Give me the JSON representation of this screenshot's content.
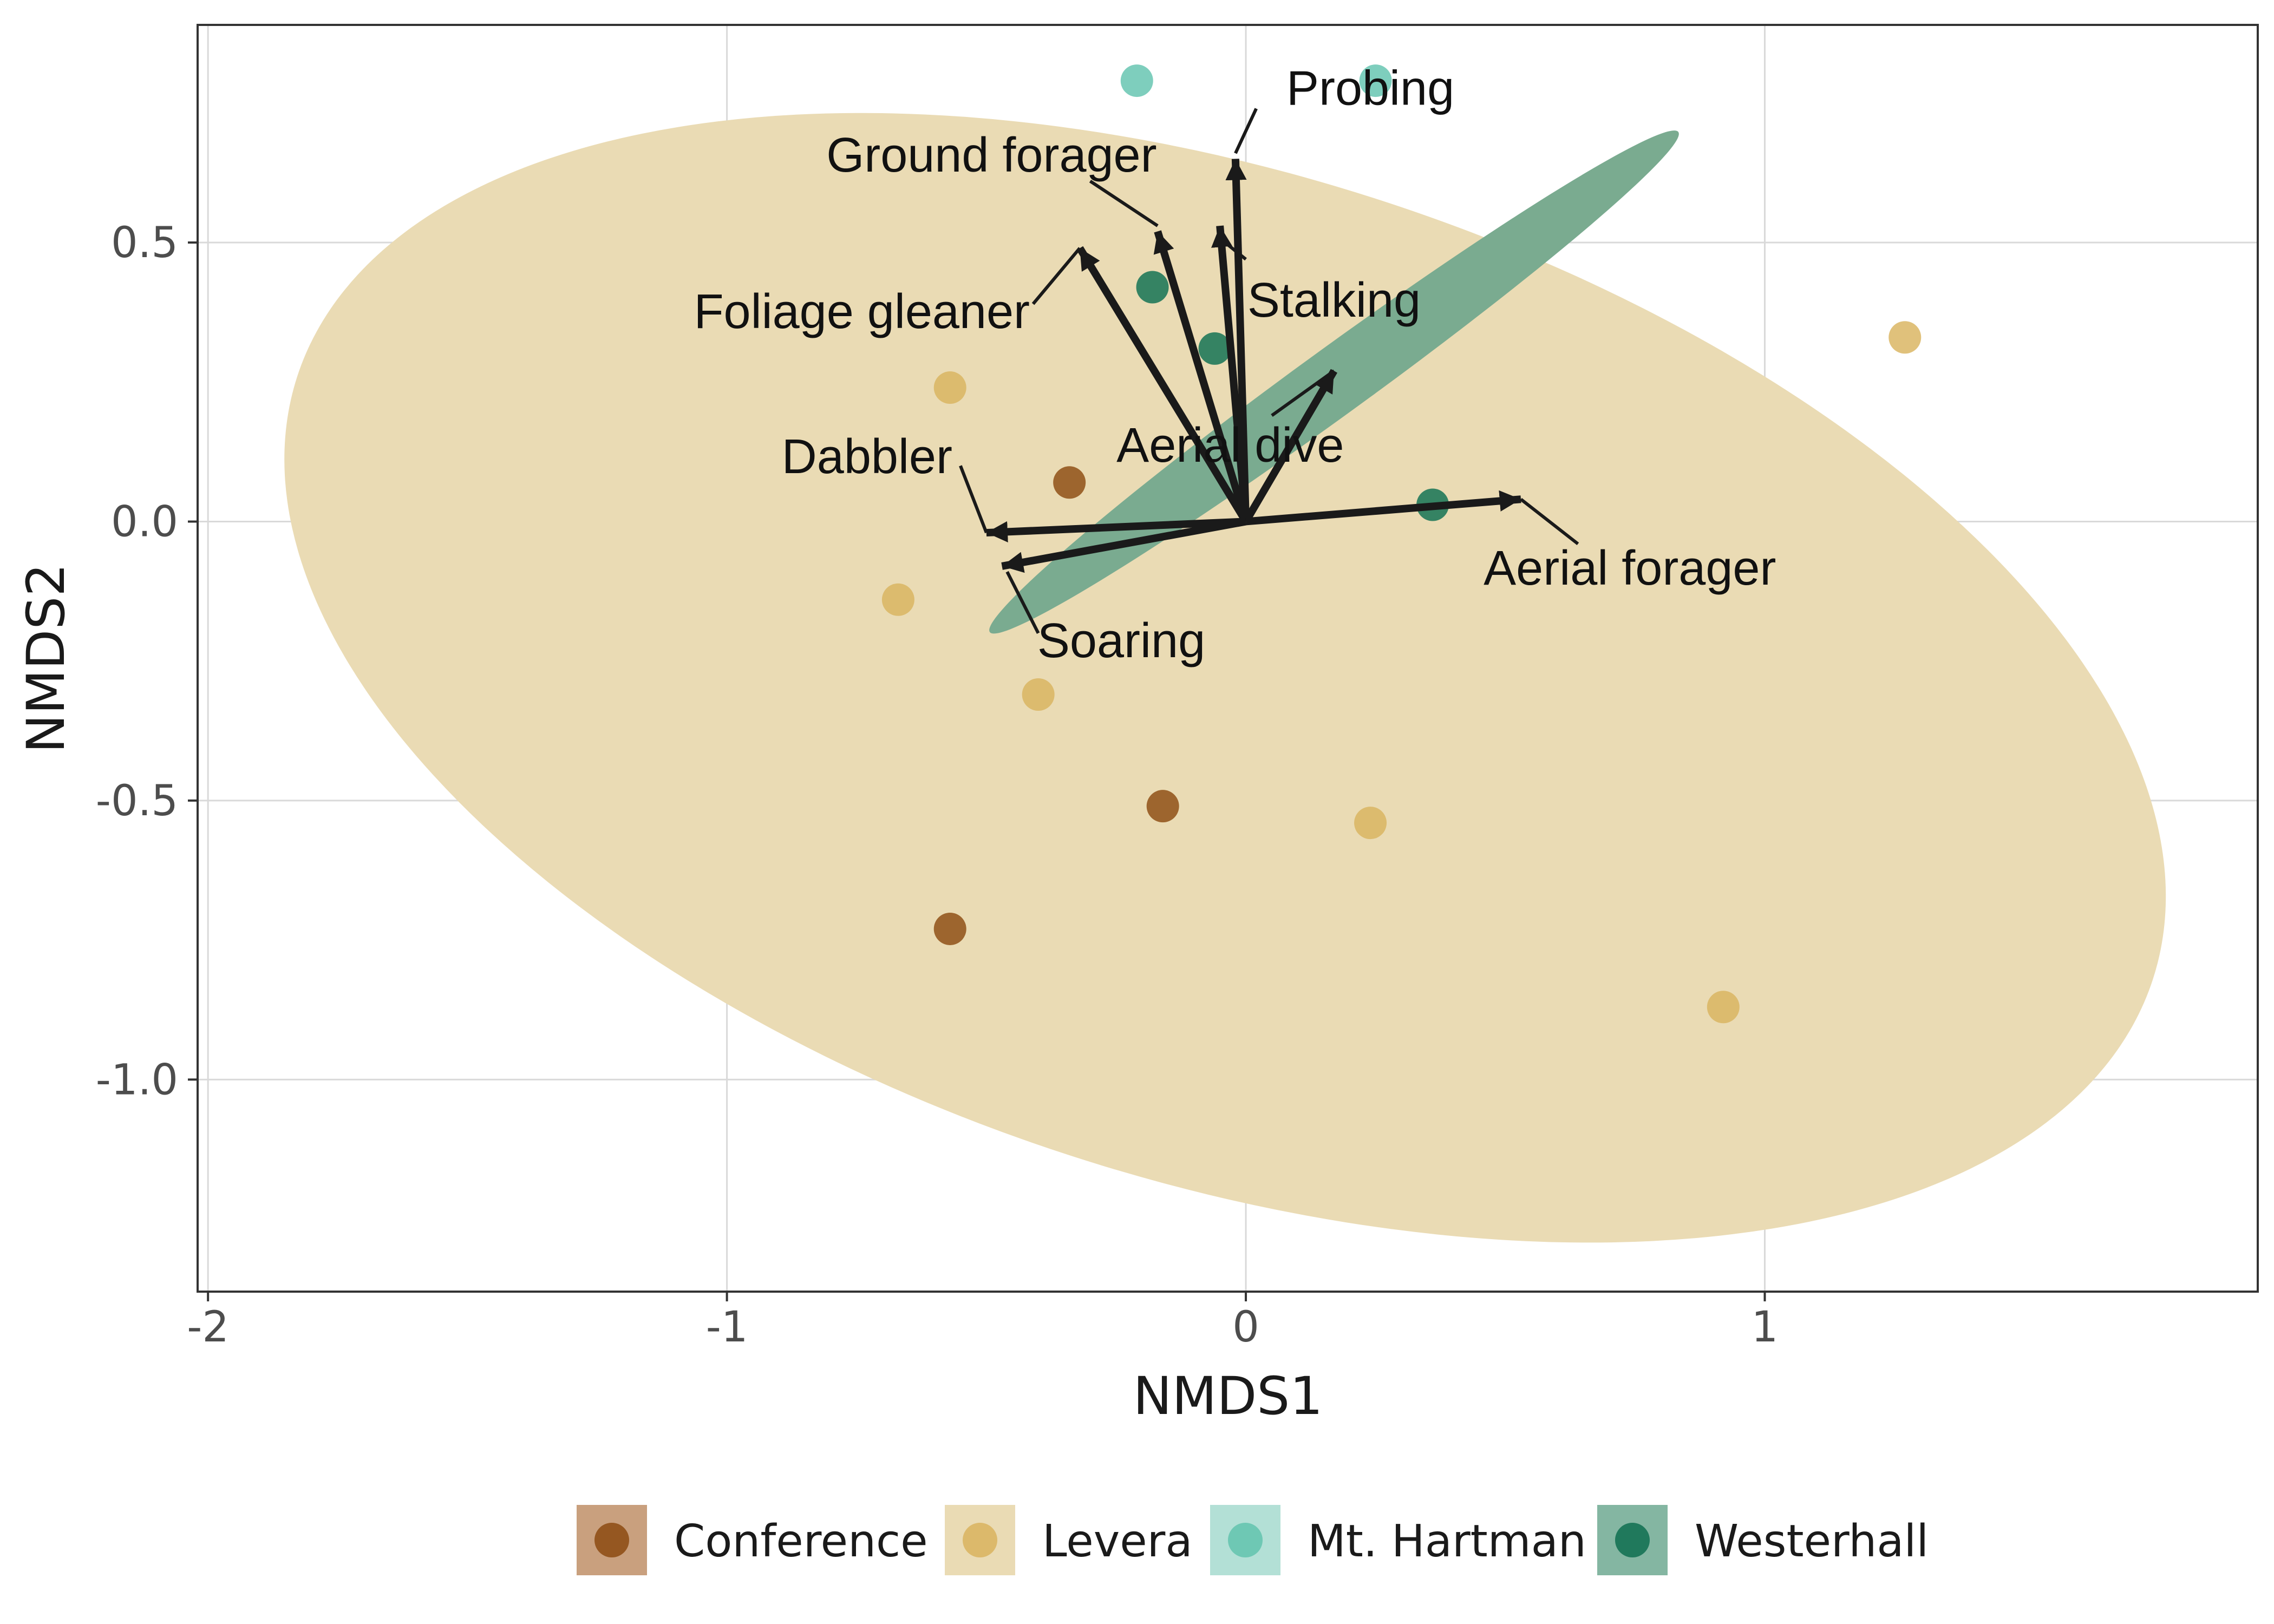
{
  "chart_data": {
    "type": "scatter",
    "subtype": "NMDS ordination biplot with group ellipses and vector arrows",
    "xlabel": "NMDS1",
    "ylabel": "NMDS2",
    "xlim": [
      -2.02,
      1.95
    ],
    "ylim": [
      -1.38,
      0.89
    ],
    "x_ticks": [
      -2,
      -1,
      0,
      1
    ],
    "x_tick_labels": [
      "-2",
      "-1",
      "0",
      "1"
    ],
    "y_ticks": [
      -1.0,
      -0.5,
      0.0,
      0.5
    ],
    "y_tick_labels": [
      "-1.0",
      "-0.5",
      "0.0",
      "0.5"
    ],
    "grid": true,
    "legend_position": "bottom",
    "groups": [
      {
        "name": "Conference",
        "point_color": "#8c4a10",
        "fill_color": "#c9a07e"
      },
      {
        "name": "Levera",
        "point_color": "#d9b35e",
        "fill_color": "#eadbb4"
      },
      {
        "name": "Mt. Hartman",
        "point_color": "#62c3ae",
        "fill_color": "#b3e0d6"
      },
      {
        "name": "Westerhall",
        "point_color": "#0e6f50",
        "fill_color": "#84b6a2"
      }
    ],
    "series": [
      {
        "name": "Conference",
        "x": [
          -0.34,
          -0.16,
          -0.57
        ],
        "y": [
          0.07,
          -0.51,
          -0.73
        ]
      },
      {
        "name": "Levera",
        "x": [
          -0.57,
          -0.67,
          -0.4,
          0.24,
          0.92,
          1.27
        ],
        "y": [
          0.24,
          -0.14,
          -0.31,
          -0.54,
          -0.87,
          0.33
        ]
      },
      {
        "name": "Mt. Hartman",
        "x": [
          -0.21,
          0.25
        ],
        "y": [
          0.79,
          0.79
        ]
      },
      {
        "name": "Westerhall",
        "x": [
          -0.18,
          -0.06,
          0.36
        ],
        "y": [
          0.42,
          0.31,
          0.03
        ]
      }
    ],
    "ellipses": [
      {
        "group": "Levera",
        "cx": -0.04,
        "cy": -0.28,
        "rx": 1.88,
        "ry": 0.9,
        "rotation_deg": -18,
        "fill": "#eadbb4"
      },
      {
        "group": "Westerhall",
        "cx": 0.17,
        "cy": 0.25,
        "rx": 0.82,
        "ry": 0.06,
        "rotation_deg": 36,
        "fill": "#7aab90"
      }
    ],
    "vectors": [
      {
        "label": "Probing",
        "x": -0.02,
        "y": 0.65,
        "label_x": 0.24,
        "label_y": 0.77,
        "leader": [
          0.02,
          0.74,
          -0.02,
          0.66
        ]
      },
      {
        "label": "Ground forager",
        "x": -0.17,
        "y": 0.52,
        "label_x": -0.49,
        "label_y": 0.65,
        "leader": [
          -0.3,
          0.61,
          -0.17,
          0.53
        ]
      },
      {
        "label": "Stalking",
        "x": -0.05,
        "y": 0.53,
        "label_x": 0.17,
        "label_y": 0.39,
        "leader": [
          0.0,
          0.47,
          -0.04,
          0.5
        ]
      },
      {
        "label": "Foliage gleaner",
        "x": -0.32,
        "y": 0.49,
        "label_x": -0.74,
        "label_y": 0.37,
        "leader": [
          -0.41,
          0.39,
          -0.32,
          0.49
        ]
      },
      {
        "label": "Aerial dive",
        "x": 0.17,
        "y": 0.27,
        "label_x": -0.03,
        "label_y": 0.13,
        "leader": [
          0.05,
          0.19,
          0.17,
          0.27
        ]
      },
      {
        "label": "Dabbler",
        "x": -0.5,
        "y": -0.02,
        "label_x": -0.73,
        "label_y": 0.11,
        "leader": [
          -0.55,
          0.1,
          -0.5,
          -0.02
        ]
      },
      {
        "label": "Soaring",
        "x": -0.47,
        "y": -0.08,
        "label_x": -0.24,
        "label_y": -0.22,
        "leader": [
          -0.4,
          -0.2,
          -0.46,
          -0.09
        ]
      },
      {
        "label": "Aerial forager",
        "x": 0.53,
        "y": 0.04,
        "label_x": 0.74,
        "label_y": -0.09,
        "leader": [
          0.64,
          -0.04,
          0.53,
          0.04
        ]
      }
    ]
  }
}
